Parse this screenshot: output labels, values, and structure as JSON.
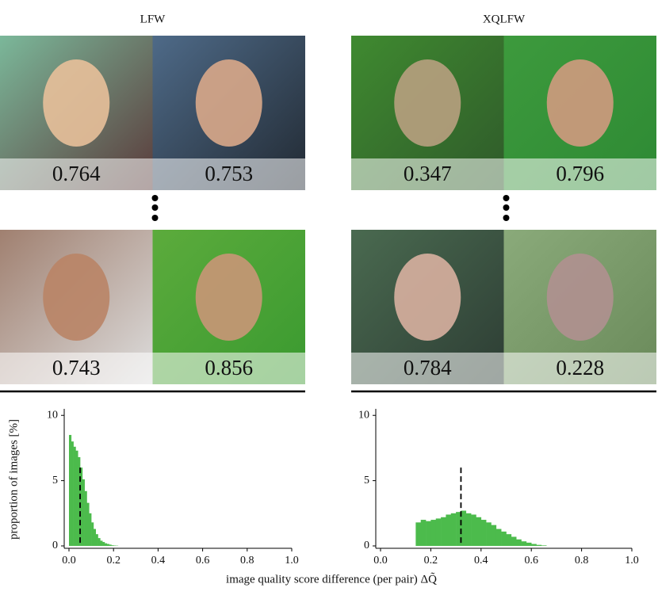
{
  "panels": [
    {
      "title": "LFW",
      "pairs": [
        [
          0.764,
          0.753
        ],
        [
          0.743,
          0.856
        ]
      ]
    },
    {
      "title": "XQLFW",
      "pairs": [
        [
          0.347,
          0.796
        ],
        [
          0.784,
          0.228
        ]
      ]
    }
  ],
  "chart_data": [
    {
      "type": "histogram",
      "ylabel": "proportion of images [%]",
      "bins": [
        0,
        0.01,
        0.02,
        0.03,
        0.04,
        0.05,
        0.06,
        0.07,
        0.08,
        0.09,
        0.1,
        0.11,
        0.12,
        0.13,
        0.14,
        0.15,
        0.16,
        0.17,
        0.18,
        0.19,
        0.2,
        0.21,
        0.22
      ],
      "values": [
        8.5,
        8.0,
        7.6,
        7.3,
        6.8,
        6.0,
        5.1,
        4.2,
        3.3,
        2.5,
        1.8,
        1.3,
        0.9,
        0.6,
        0.4,
        0.3,
        0.2,
        0.15,
        0.1,
        0.05,
        0.03,
        0.02
      ],
      "color": "#4cbb4c",
      "dashed_line": 0.05,
      "xlim": [
        0,
        1
      ],
      "ylim": [
        0,
        10.5
      ],
      "xticks": [
        {
          "value": 0,
          "label": "0.0"
        },
        0.2,
        0.4,
        0.6,
        0.8,
        {
          "value": 1,
          "label": "1.0"
        }
      ],
      "yticks": [
        0,
        5,
        10
      ]
    },
    {
      "type": "histogram",
      "xlabel": "image quality score difference (per pair) ΔQ̃",
      "bins": [
        0.14,
        0.16,
        0.18,
        0.2,
        0.22,
        0.24,
        0.26,
        0.28,
        0.3,
        0.32,
        0.34,
        0.36,
        0.38,
        0.4,
        0.42,
        0.44,
        0.46,
        0.48,
        0.5,
        0.52,
        0.54,
        0.56,
        0.58,
        0.6,
        0.62,
        0.64,
        0.66
      ],
      "values": [
        1.8,
        2.0,
        1.9,
        2.0,
        2.1,
        2.2,
        2.4,
        2.5,
        2.6,
        2.7,
        2.5,
        2.4,
        2.2,
        2.0,
        1.8,
        1.6,
        1.3,
        1.1,
        0.9,
        0.7,
        0.5,
        0.35,
        0.25,
        0.15,
        0.08,
        0.04
      ],
      "color": "#4cbb4c",
      "dashed_line": 0.32,
      "xlim": [
        0,
        1
      ],
      "ylim": [
        0,
        10.5
      ],
      "xticks": [
        {
          "value": 0,
          "label": "0.0"
        },
        0.2,
        0.4,
        0.6,
        0.8,
        {
          "value": 1,
          "label": "1.0"
        }
      ],
      "yticks": [
        0,
        5,
        10
      ]
    }
  ]
}
